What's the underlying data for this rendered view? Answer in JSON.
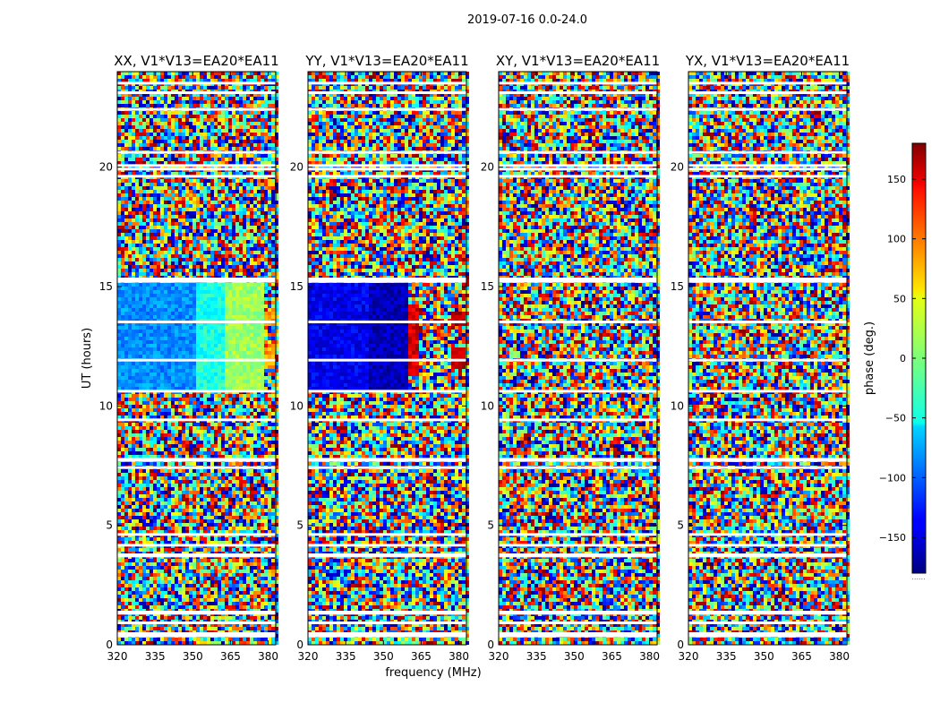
{
  "chart_data": {
    "type": "heatmap",
    "suptitle": "2019-07-16 0.0-24.0",
    "xlabel": "frequency (MHz)",
    "ylabel": "UT (hours)",
    "xlim": [
      320,
      383
    ],
    "ylim": [
      0,
      24
    ],
    "x_ticks": [
      320,
      335,
      350,
      365,
      380
    ],
    "y_ticks": [
      0,
      5,
      10,
      15,
      20
    ],
    "colormap": "jet",
    "colorbar": {
      "label": "phase (deg.)",
      "range": [
        -180,
        180
      ],
      "ticks": [
        150,
        100,
        50,
        0,
        -50,
        -100,
        -150
      ],
      "tick_labels": [
        "150",
        "100",
        "50",
        "0",
        "−50",
        "−100",
        "−150"
      ],
      "footnote": "......"
    },
    "panels": [
      {
        "title": "XX, V1*V13=EA20*EA11",
        "coherent_phase_blocks": [
          {
            "t_start": 10.6,
            "t_end": 15.2,
            "f_start": 320,
            "f_end": 352,
            "phase_deg": -85
          },
          {
            "t_start": 10.6,
            "t_end": 15.2,
            "f_start": 352,
            "f_end": 362,
            "phase_deg": -35
          },
          {
            "t_start": 10.6,
            "t_end": 15.2,
            "f_start": 362,
            "f_end": 378,
            "phase_deg": 10
          },
          {
            "t_start": 11.6,
            "t_end": 12.4,
            "f_start": 378,
            "f_end": 383,
            "phase_deg": 80
          },
          {
            "t_start": 13.3,
            "t_end": 13.9,
            "f_start": 378,
            "f_end": 383,
            "phase_deg": 80
          }
        ]
      },
      {
        "title": "YY, V1*V13=EA20*EA11",
        "coherent_phase_blocks": [
          {
            "t_start": 10.6,
            "t_end": 15.2,
            "f_start": 320,
            "f_end": 344,
            "phase_deg": -140
          },
          {
            "t_start": 10.6,
            "t_end": 15.2,
            "f_start": 344,
            "f_end": 360,
            "phase_deg": -160
          },
          {
            "t_start": 11.3,
            "t_end": 14.2,
            "f_start": 357,
            "f_end": 364,
            "phase_deg": 150
          },
          {
            "t_start": 11.6,
            "t_end": 12.4,
            "f_start": 377,
            "f_end": 383,
            "phase_deg": 160
          },
          {
            "t_start": 13.3,
            "t_end": 13.9,
            "f_start": 377,
            "f_end": 383,
            "phase_deg": 160
          }
        ]
      },
      {
        "title": "XY, V1*V13=EA20*EA11",
        "coherent_phase_blocks": []
      },
      {
        "title": "YX, V1*V13=EA20*EA11",
        "coherent_phase_blocks": []
      }
    ],
    "flagged_time_bands_hours": [
      0.35,
      0.45,
      0.9,
      1.3,
      1.35,
      3.7,
      3.75,
      4.15,
      4.6,
      7.4,
      7.7,
      7.75,
      9.4,
      10.6,
      11.9,
      13.5,
      15.2,
      15.3,
      19.6,
      19.9,
      20.05,
      20.6,
      22.4,
      23.1,
      23.5
    ]
  }
}
